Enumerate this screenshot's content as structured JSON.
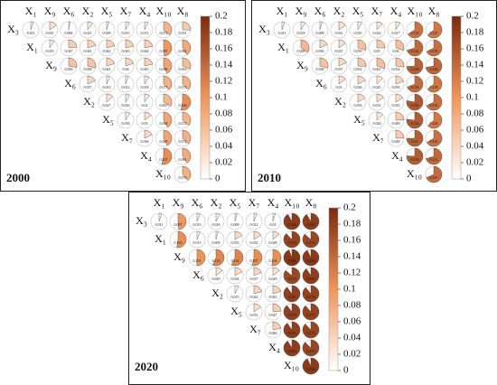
{
  "chart_data": [
    {
      "type": "pie-matrix",
      "title": "2000",
      "rows": [
        "X₃",
        "X₁",
        "X₉",
        "X₆",
        "X₂",
        "X₅",
        "X₇",
        "X₄",
        "X₁₀"
      ],
      "columns": [
        "X₁",
        "X₉",
        "X₆",
        "X₂",
        "X₅",
        "X₇",
        "X₄",
        "X₁₀",
        "X₈"
      ],
      "values": [
        [
          0.011,
          0.031,
          0.006,
          0.021,
          0.009,
          0.015,
          0.013,
          0.072,
          0.051
        ],
        [
          0.019,
          0.047,
          0.041,
          0.042,
          0.043,
          0.044,
          0.097,
          0.082
        ],
        [
          0.056,
          0.058,
          0.041,
          0.04,
          0.043,
          0.086,
          0.063
        ],
        [
          0.037,
          0.014,
          0.012,
          0.018,
          0.075,
          0.074
        ],
        [
          0.027,
          0.016,
          0.02,
          0.067,
          0.106
        ],
        [
          0.018,
          0.03,
          0.084,
          0.072
        ],
        [
          0.036,
          0.085,
          0.074
        ],
        [
          0.107,
          0.081
        ],
        [
          0.076
        ]
      ],
      "clim": [
        0,
        0.2
      ],
      "cticks": [
        0,
        0.02,
        0.04,
        0.06,
        0.08,
        0.1,
        0.12,
        0.14,
        0.16,
        0.18,
        0.2
      ],
      "colors": [
        "#ffffff",
        "#f0955a",
        "#7a2a0e"
      ]
    },
    {
      "type": "pie-matrix",
      "title": "2010",
      "rows": [
        "X₃",
        "X₁",
        "X₉",
        "X₆",
        "X₂",
        "X₅",
        "X₇",
        "X₄",
        "X₁₀"
      ],
      "columns": [
        "X₁",
        "X₉",
        "X₆",
        "X₂",
        "X₅",
        "X₇",
        "X₄",
        "X₁₀",
        "X₈"
      ],
      "values": [
        [
          0.011,
          0.018,
          0.009,
          0.031,
          0.016,
          0.024,
          0.017,
          0.132,
          0.127
        ],
        [
          0.069,
          0.036,
          0.031,
          0.059,
          0.05,
          0.06,
          0.141,
          0.135
        ],
        [
          0.058,
          0.037,
          0.052,
          0.061,
          0.054,
          0.148,
          0.144
        ],
        [
          0.03,
          0.036,
          0.025,
          0.039,
          0.138,
          0.128
        ],
        [
          0.033,
          0.031,
          0.033,
          0.156,
          0.135
        ],
        [
          0.026,
          0.049,
          0.154,
          0.126
        ],
        [
          0.049,
          0.15,
          0.133
        ],
        [
          0.152,
          0.141
        ],
        [
          0.137
        ]
      ],
      "clim": [
        0,
        0.2
      ],
      "cticks": [
        0,
        0.02,
        0.04,
        0.06,
        0.08,
        0.1,
        0.12,
        0.14,
        0.16,
        0.18,
        0.2
      ],
      "colors": [
        "#ffffff",
        "#f0955a",
        "#7a2a0e"
      ]
    },
    {
      "type": "pie-matrix",
      "title": "2020",
      "rows": [
        "X₃",
        "X₁",
        "X₉",
        "X₆",
        "X₂",
        "X₅",
        "X₇",
        "X₄",
        "X₁₀"
      ],
      "columns": [
        "X₁",
        "X₉",
        "X₆",
        "X₂",
        "X₅",
        "X₇",
        "X₄",
        "X₁₀",
        "X₈"
      ],
      "values": [
        [
          0.011,
          0.097,
          0.013,
          0.016,
          0.009,
          0.012,
          0.01,
          0.184,
          0.183
        ],
        [
          0.105,
          0.013,
          0.009,
          0.033,
          0.032,
          0.028,
          0.176,
          0.173
        ],
        [
          0.101,
          0.113,
          0.114,
          0.107,
          0.104,
          0.189,
          0.186
        ],
        [
          0.029,
          0.034,
          0.037,
          0.029,
          0.172,
          0.182
        ],
        [
          0.015,
          0.042,
          0.041,
          0.18,
          0.178
        ],
        [
          0.031,
          0.047,
          0.179,
          0.177
        ],
        [
          0.044,
          0.181,
          0.176
        ],
        [
          0.183,
          0.175
        ],
        [
          0.186
        ]
      ],
      "clim": [
        0,
        0.2
      ],
      "cticks": [
        0,
        0.02,
        0.04,
        0.06,
        0.08,
        0.1,
        0.12,
        0.14,
        0.16,
        0.18,
        0.2
      ],
      "colors": [
        "#ffffff",
        "#f0955a",
        "#7a2a0e"
      ]
    }
  ]
}
